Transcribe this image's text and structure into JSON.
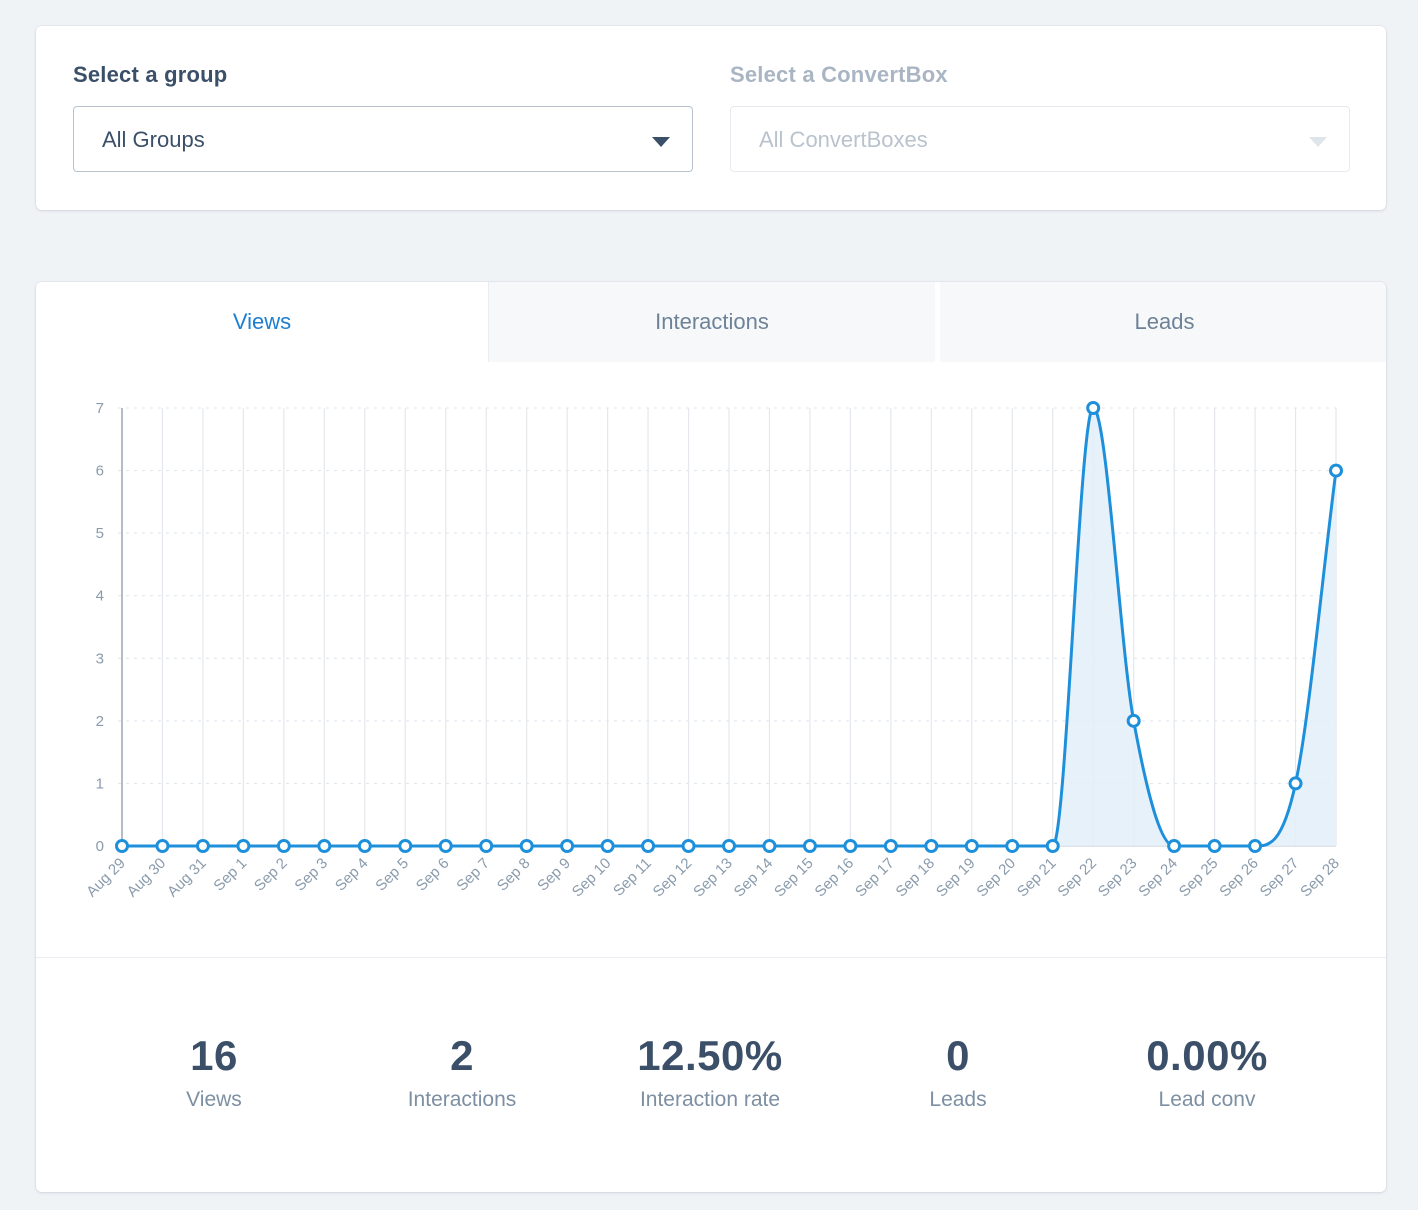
{
  "filters": {
    "group": {
      "label": "Select a group",
      "value": "All Groups"
    },
    "convertbox": {
      "label": "Select a ConvertBox",
      "value": "All ConvertBoxes"
    }
  },
  "tabs": [
    {
      "label": "Views",
      "active": true
    },
    {
      "label": "Interactions",
      "active": false
    },
    {
      "label": "Leads",
      "active": false
    }
  ],
  "colors": {
    "accent": "#1d7fd0",
    "line": "#1e90db",
    "fill": "#e3eef9",
    "text": "#3b5068"
  },
  "chart_data": {
    "type": "area",
    "x": [
      "Aug 29",
      "Aug 30",
      "Aug 31",
      "Sep 1",
      "Sep 2",
      "Sep 3",
      "Sep 4",
      "Sep 5",
      "Sep 6",
      "Sep 7",
      "Sep 8",
      "Sep 9",
      "Sep 10",
      "Sep 11",
      "Sep 12",
      "Sep 13",
      "Sep 14",
      "Sep 15",
      "Sep 16",
      "Sep 17",
      "Sep 18",
      "Sep 19",
      "Sep 20",
      "Sep 21",
      "Sep 22",
      "Sep 23",
      "Sep 24",
      "Sep 25",
      "Sep 26",
      "Sep 27",
      "Sep 28"
    ],
    "series": [
      {
        "values": [
          0,
          0,
          0,
          0,
          0,
          0,
          0,
          0,
          0,
          0,
          0,
          0,
          0,
          0,
          0,
          0,
          0,
          0,
          0,
          0,
          0,
          0,
          0,
          0,
          7,
          2,
          0,
          0,
          0,
          1,
          6
        ]
      }
    ],
    "yticks": [
      0,
      1,
      2,
      3,
      4,
      5,
      6,
      7
    ],
    "ylim": [
      0,
      7
    ],
    "grid": true,
    "legend": false
  },
  "stats": [
    {
      "value": "16",
      "label": "Views"
    },
    {
      "value": "2",
      "label": "Interactions"
    },
    {
      "value": "12.50%",
      "label": "Interaction rate"
    },
    {
      "value": "0",
      "label": "Leads"
    },
    {
      "value": "0.00%",
      "label": "Lead conv"
    }
  ]
}
